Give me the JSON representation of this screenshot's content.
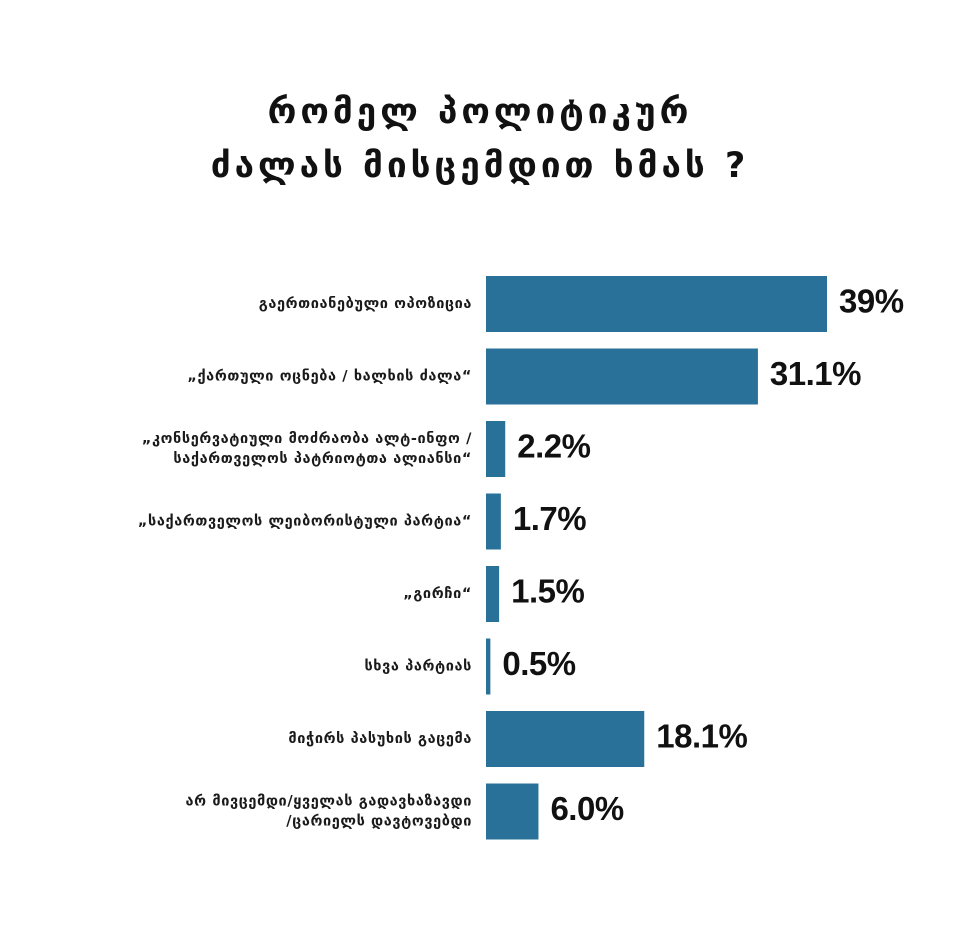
{
  "chart_data": {
    "type": "bar",
    "orientation": "horizontal",
    "title_lines": [
      "რომელ პოლიტიკურ",
      "ძალას მისცემდით ხმას ?"
    ],
    "categories": [
      [
        "გაერთიანებული ოპოზიცია"
      ],
      [
        "„ქართული ოცნება / ხალხის ძალა“"
      ],
      [
        "„კონსერვატიული მოძრაობა ალტ-ინფო /",
        "საქართველოს  პატრიოტთა ალიანსი“"
      ],
      [
        "„საქართველოს  ლეიბორისტული პარტია“"
      ],
      [
        "„გირჩი“"
      ],
      [
        "სხვა პარტიას"
      ],
      [
        "მიჭირს პასუხის გაცემა"
      ],
      [
        "არ მივცემდი/ყველას გადავხაზავდი",
        "/ცარიელს დავტოვებდი"
      ]
    ],
    "values": [
      39,
      31.1,
      2.2,
      1.7,
      1.5,
      0.5,
      18.1,
      6.0
    ],
    "value_labels": [
      "39%",
      "31.1%",
      "2.2%",
      "1.7%",
      "1.5%",
      "0.5%",
      "18.1%",
      "6.0%"
    ],
    "unit": "%",
    "bar_color": "#2a7199",
    "xlabel": "",
    "ylabel": "",
    "grid": false,
    "legend": false
  }
}
